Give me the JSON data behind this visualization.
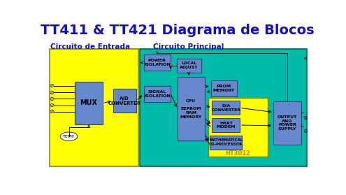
{
  "title": "TT411 & TT421 Diagrama de Blocos",
  "title_color": "#1111CC",
  "title_fontsize": 14,
  "bg_color": "#FFFFFF",
  "yellow_color": "#FFFF00",
  "teal_color": "#00BBAA",
  "blue_block_color": "#6688CC",
  "label_entrada": "Circuito de Entrada",
  "label_principal": "Circuito Principal",
  "label_color": "#1111CC",
  "label_fontsize": 7.5,
  "ht3012_color": "#FFFF00",
  "ht3012_label": "HT3012",
  "ht3012_label_color": "#CC8800"
}
